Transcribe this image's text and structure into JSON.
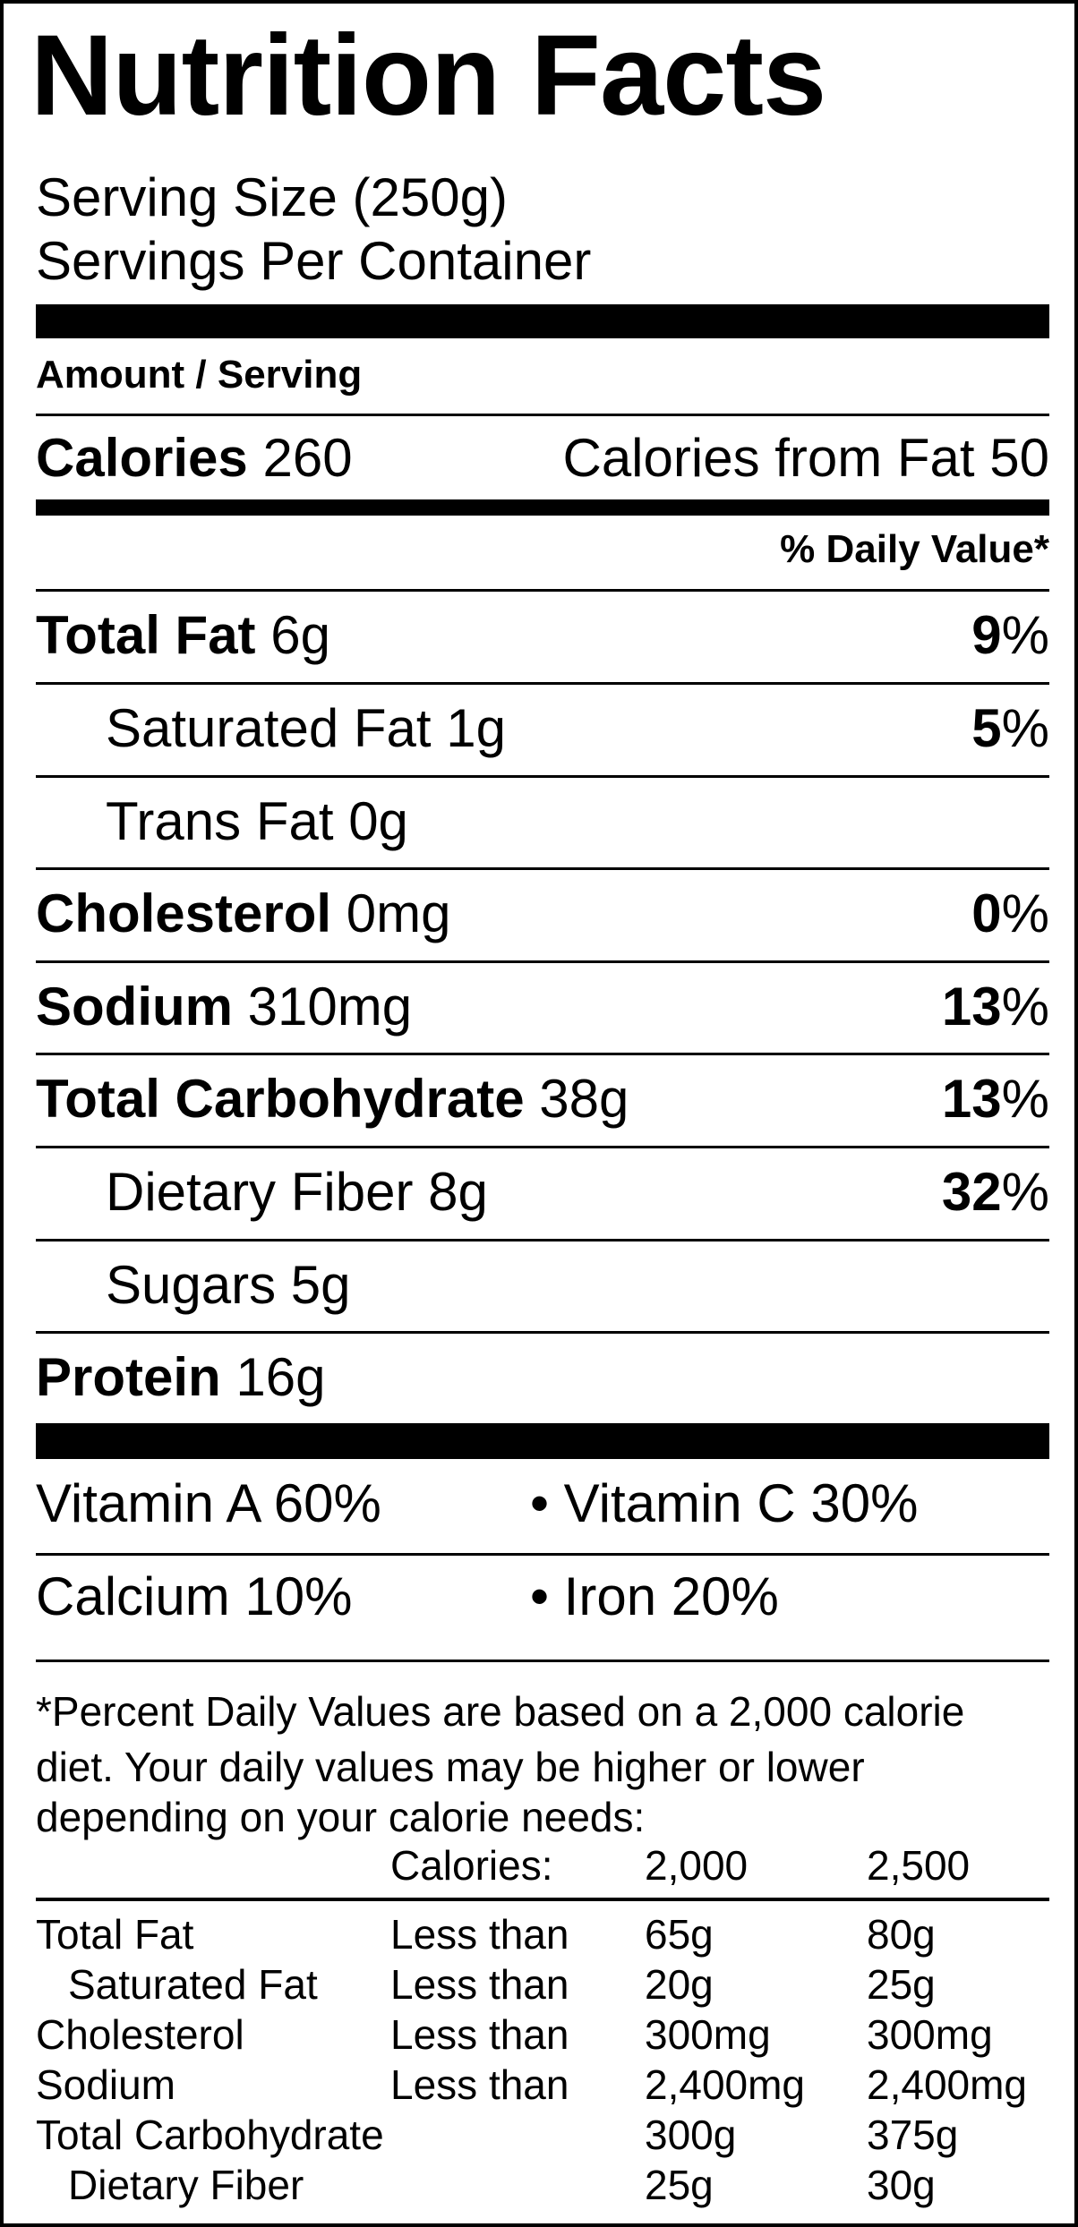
{
  "title": "Nutrition Facts",
  "serving_size": "Serving Size (250g)",
  "servings_per_container": "Servings Per Container",
  "amount_per_serving": "Amount / Serving",
  "calories": {
    "label": "Calories",
    "value": "260",
    "from_fat": "Calories from Fat 50"
  },
  "dv_header": "% Daily Value*",
  "nutrients": {
    "total_fat": {
      "name": "Total Fat",
      "amount": "6g",
      "dv_num": "9",
      "dv_sym": "%"
    },
    "saturated_fat": {
      "name": "Saturated Fat",
      "amount": "1g",
      "dv_num": "5",
      "dv_sym": "%"
    },
    "trans_fat": {
      "name": "Trans Fat",
      "amount": "0g"
    },
    "cholesterol": {
      "name": "Cholesterol",
      "amount": "0mg",
      "dv_num": "0",
      "dv_sym": "%"
    },
    "sodium": {
      "name": "Sodium",
      "amount": "310mg",
      "dv_num": "13",
      "dv_sym": "%"
    },
    "total_carbohydrate": {
      "name": "Total Carbohydrate",
      "amount": "38g",
      "dv_num": "13",
      "dv_sym": "%"
    },
    "dietary_fiber": {
      "name": "Dietary Fiber",
      "amount": "8g",
      "dv_num": "32",
      "dv_sym": "%"
    },
    "sugars": {
      "name": "Sugars",
      "amount": "5g"
    },
    "protein": {
      "name": "Protein",
      "amount": "16g"
    }
  },
  "vitamins": {
    "vitamin_a": "Vitamin A 60%",
    "vitamin_c": "• Vitamin C 30%",
    "calcium": "Calcium 10%",
    "iron": "• Iron 20%"
  },
  "footnote": {
    "line1": "*Percent Daily Values are based on a 2,000 calorie",
    "line2": "diet. Your daily values may be higher or lower",
    "line3": "depending on your calorie needs:",
    "calories_header": [
      "Calories:",
      "2,000",
      "2,500"
    ],
    "rows": [
      {
        "name": "Total Fat",
        "limit": "Less than",
        "v1": "65g",
        "v2": "80g"
      },
      {
        "name": "Saturated Fat",
        "limit": "Less than",
        "v1": "20g",
        "v2": "25g"
      },
      {
        "name": "Cholesterol",
        "limit": "Less than",
        "v1": "300mg",
        "v2": "300mg"
      },
      {
        "name": "Sodium",
        "limit": "Less than",
        "v1": "2,400mg",
        "v2": "2,400mg"
      },
      {
        "name": "Total Carbohydrate",
        "limit": "",
        "v1": "300g",
        "v2": "375g"
      },
      {
        "name": "Dietary Fiber",
        "limit": "",
        "v1": "25g",
        "v2": "30g"
      }
    ]
  }
}
